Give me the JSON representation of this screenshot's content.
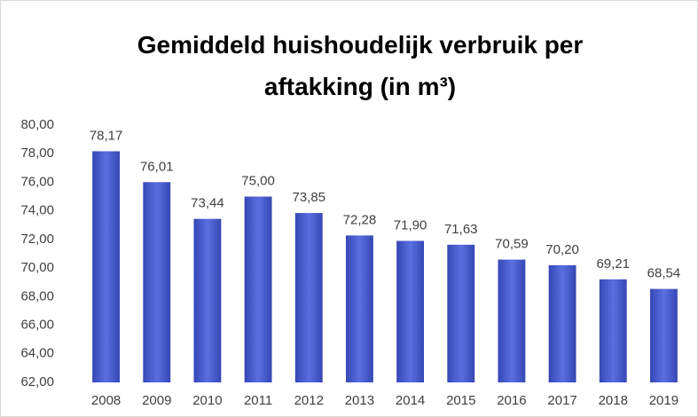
{
  "chart_data": {
    "type": "bar",
    "title": "Gemiddeld huishoudelijk verbruik per aftakking (in m³)",
    "categories": [
      "2008",
      "2009",
      "2010",
      "2011",
      "2012",
      "2013",
      "2014",
      "2015",
      "2016",
      "2017",
      "2018",
      "2019"
    ],
    "values": [
      78.17,
      76.01,
      73.44,
      75.0,
      73.85,
      72.28,
      71.9,
      71.63,
      70.59,
      70.2,
      69.21,
      68.54
    ],
    "value_labels": [
      "78,17",
      "76,01",
      "73,44",
      "75,00",
      "73,85",
      "72,28",
      "71,90",
      "71,63",
      "70,59",
      "70,20",
      "69,21",
      "68,54"
    ],
    "color": "#3547b5",
    "ylim": [
      62,
      80
    ],
    "yticks": [
      {
        "value": 62,
        "label": "62,00"
      },
      {
        "value": 64,
        "label": "64,00"
      },
      {
        "value": 66,
        "label": "66,00"
      },
      {
        "value": 68,
        "label": "68,00"
      },
      {
        "value": 70,
        "label": "70,00"
      },
      {
        "value": 72,
        "label": "72,00"
      },
      {
        "value": 74,
        "label": "74,00"
      },
      {
        "value": 76,
        "label": "76,00"
      },
      {
        "value": 78,
        "label": "78,00"
      },
      {
        "value": 80,
        "label": "80,00"
      }
    ],
    "grid": false
  }
}
